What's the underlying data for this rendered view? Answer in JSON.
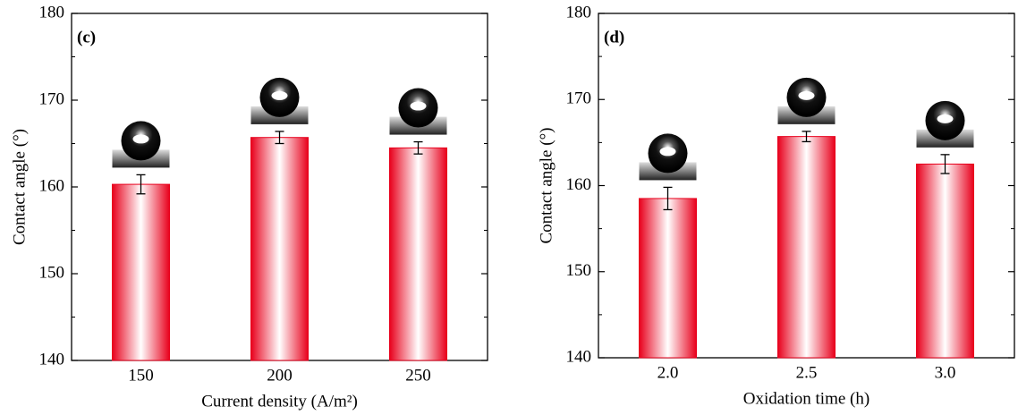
{
  "chart_data": [
    {
      "type": "bar",
      "panel_label": "(c)",
      "x_label": "Current density (A/m²)",
      "y_label": "Contact angle (°)",
      "categories": [
        "150",
        "200",
        "250"
      ],
      "values": [
        160.3,
        165.7,
        164.5
      ],
      "errors": [
        1.1,
        0.7,
        0.7
      ],
      "color": "#e8001c",
      "ylim": [
        140,
        180
      ],
      "yticks": [
        140,
        150,
        160,
        170,
        180
      ]
    },
    {
      "type": "bar",
      "panel_label": "(d)",
      "x_label": "Oxidation time (h)",
      "y_label": "Contact angle (°)",
      "categories": [
        "2.0",
        "2.5",
        "3.0"
      ],
      "values": [
        158.5,
        165.7,
        162.5
      ],
      "errors": [
        1.3,
        0.6,
        1.1
      ],
      "color": "#e8001c",
      "ylim": [
        140,
        180
      ],
      "yticks": [
        140,
        150,
        160,
        170,
        180
      ]
    }
  ]
}
